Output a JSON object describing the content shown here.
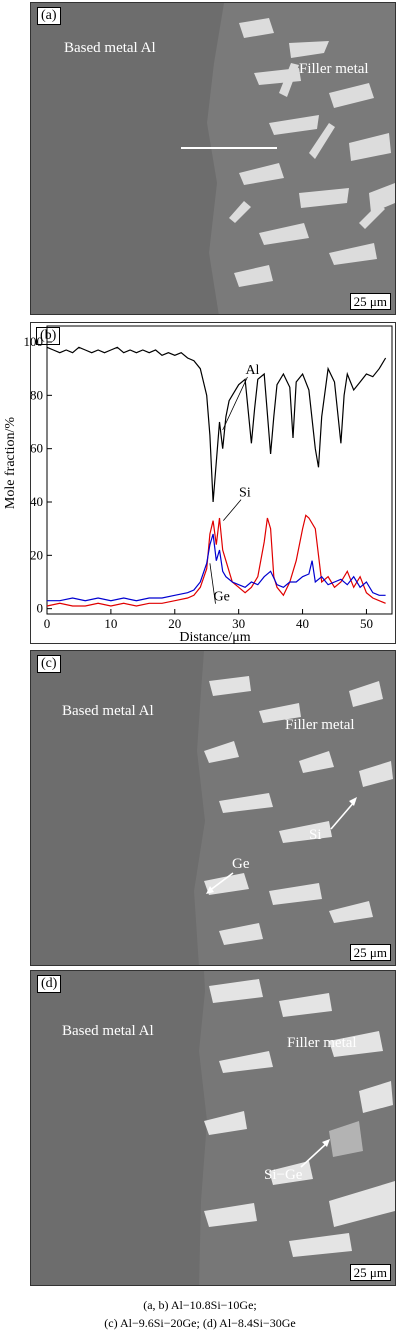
{
  "panel_a": {
    "tag": "(a)",
    "base_label": "Based metal Al",
    "filler_label": "Filler metal",
    "scale": "25 μm"
  },
  "panel_c": {
    "tag": "(c)",
    "base_label": "Based metal Al",
    "filler_label": "Filler metal",
    "si_label": "Si",
    "ge_label": "Ge",
    "scale": "25 μm"
  },
  "panel_d": {
    "tag": "(d)",
    "base_label": "Based metal Al",
    "filler_label": "Filler metal",
    "sige_label": "Si−Ge",
    "scale": "25 μm"
  },
  "caption": {
    "line1": "(a, b) Al−10.8Si−10Ge;",
    "line2": "(c) Al−9.6Si−20Ge; (d) Al−8.4Si−30Ge"
  },
  "colors": {
    "al": "#000000",
    "si": "#e00000",
    "ge": "#0000d0",
    "sem_bg": "#6d6d6d"
  },
  "chart_data": {
    "type": "line",
    "tag": "(b)",
    "xlabel": "Distance/μm",
    "ylabel": "Mole fraction/%",
    "xlim": [
      0,
      54
    ],
    "ylim": [
      -2,
      106
    ],
    "xticks": [
      0,
      10,
      20,
      30,
      40,
      50
    ],
    "yticks": [
      0,
      20,
      40,
      60,
      80,
      100
    ],
    "series": [
      {
        "name": "Al",
        "color": "#000000",
        "x": [
          0,
          1,
          2,
          3,
          4,
          5,
          6,
          7,
          8,
          9,
          10,
          11,
          12,
          13,
          14,
          15,
          16,
          17,
          18,
          19,
          20,
          21,
          22,
          23,
          24,
          25,
          25.5,
          26,
          26.5,
          27,
          27.5,
          28,
          28.5,
          29,
          30,
          31,
          32,
          32.5,
          33,
          34,
          35,
          35.5,
          36,
          37,
          38,
          38.5,
          39,
          40,
          41,
          42,
          42.5,
          43,
          44,
          45,
          46,
          46.5,
          47,
          48,
          49,
          50,
          51,
          52,
          53
        ],
        "y": [
          98,
          97,
          96,
          97,
          96,
          98,
          97,
          96,
          97,
          96,
          97,
          98,
          96,
          97,
          96,
          97,
          96,
          97,
          95,
          96,
          95,
          96,
          94,
          93,
          90,
          80,
          65,
          40,
          55,
          70,
          60,
          72,
          78,
          80,
          84,
          86,
          62,
          75,
          86,
          88,
          58,
          72,
          84,
          88,
          83,
          64,
          85,
          88,
          82,
          60,
          53,
          72,
          90,
          85,
          62,
          80,
          88,
          82,
          85,
          88,
          87,
          90,
          94
        ]
      },
      {
        "name": "Si",
        "color": "#e00000",
        "x": [
          0,
          2,
          4,
          6,
          8,
          10,
          12,
          14,
          16,
          18,
          20,
          22,
          23,
          24,
          25,
          25.5,
          26,
          26.5,
          27,
          27.5,
          28,
          29,
          30,
          31,
          32,
          33,
          34,
          34.5,
          35,
          35.5,
          36,
          37,
          38,
          39,
          40,
          40.5,
          41,
          42,
          42.5,
          43,
          44,
          45,
          46,
          47,
          48,
          49,
          50,
          51,
          52,
          53
        ],
        "y": [
          1,
          2,
          1,
          1,
          2,
          1,
          2,
          1,
          2,
          2,
          3,
          4,
          5,
          8,
          15,
          28,
          33,
          24,
          34,
          22,
          18,
          10,
          8,
          6,
          8,
          12,
          25,
          34,
          30,
          12,
          8,
          5,
          10,
          18,
          30,
          35,
          34,
          30,
          20,
          10,
          12,
          8,
          10,
          14,
          8,
          12,
          6,
          4,
          3,
          2
        ]
      },
      {
        "name": "Ge",
        "color": "#0000d0",
        "x": [
          0,
          2,
          4,
          6,
          8,
          10,
          12,
          14,
          16,
          18,
          20,
          22,
          23,
          24,
          25,
          25.5,
          26,
          26.5,
          27,
          27.5,
          28,
          29,
          30,
          31,
          32,
          33,
          34,
          35,
          36,
          37,
          38,
          39,
          40,
          41,
          41.5,
          42,
          43,
          44,
          45,
          46,
          47,
          48,
          49,
          50,
          51,
          52,
          53
        ],
        "y": [
          3,
          3,
          4,
          3,
          4,
          3,
          4,
          3,
          4,
          4,
          5,
          6,
          7,
          10,
          17,
          24,
          28,
          18,
          22,
          14,
          12,
          10,
          9,
          8,
          10,
          9,
          12,
          14,
          9,
          8,
          10,
          10,
          12,
          13,
          18,
          10,
          12,
          9,
          10,
          11,
          9,
          12,
          8,
          10,
          6,
          5,
          5
        ]
      }
    ],
    "annotations": [
      "Al",
      "Si",
      "Ge"
    ]
  }
}
